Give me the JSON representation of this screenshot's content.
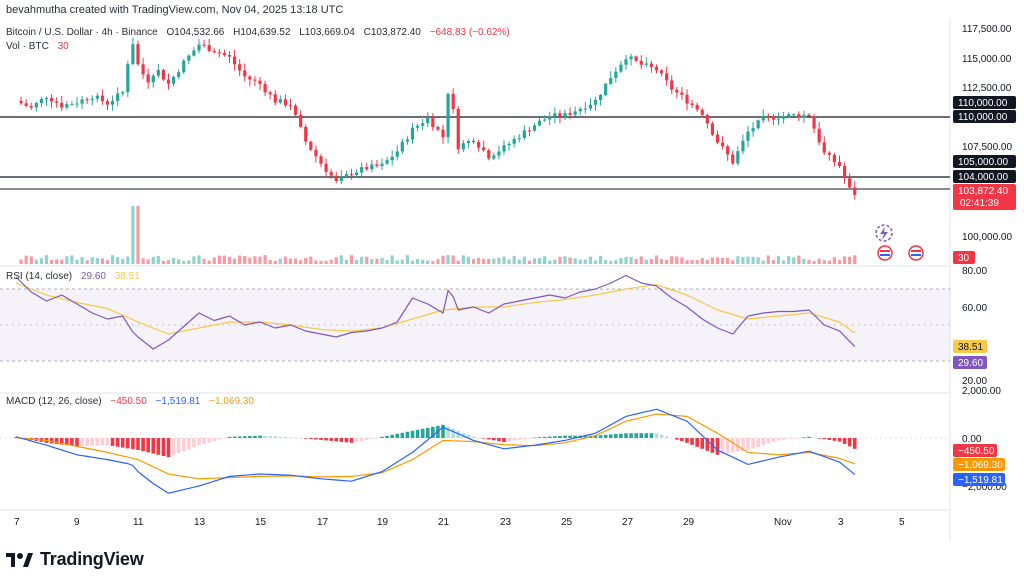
{
  "header": {
    "author_line": "bevahmutha created with TradingView.com, Nov 04, 2025 13:18 UTC"
  },
  "price_legend": {
    "symbol": "Bitcoin / U.S. Dollar · 4h · Binance",
    "open": "O104,532.66",
    "high": "H104,639.52",
    "low": "L103,669.04",
    "close": "C103,872.40",
    "change": "−648.83 (−0.62%)"
  },
  "volume_legend": {
    "label": "Vol · BTC",
    "value": "30"
  },
  "rsi_legend": {
    "label": "RSI (14, close)",
    "rsi": "29.60",
    "ma": "38.51"
  },
  "macd_legend": {
    "label": "MACD (12, 26, close)",
    "hist": "−450.50",
    "macd": "−1,519.81",
    "signal": "−1,069.30"
  },
  "price_axis": {
    "ticks": [
      "117,500.00",
      "115,000.00",
      "112,500.00",
      "107,500.00",
      "100,000.00"
    ],
    "tags": {
      "t110a": "110,000.00",
      "t110b": "110,000.00",
      "t105": "105,000.00",
      "t104": "104,000.00",
      "last": "103,872.40",
      "countdown": "02:41:39",
      "vol": "30"
    }
  },
  "rsi_axis": {
    "ticks": [
      "80.00",
      "60.00",
      "20.00"
    ],
    "ma_tag": "38.51",
    "rsi_tag": "29.60"
  },
  "macd_axis": {
    "ticks": [
      "2,000.00",
      "0.00",
      "−2,000.00"
    ],
    "hist_tag": "−450.50",
    "signal_tag": "−1,069.30",
    "macd_tag": "−1,519.81"
  },
  "time_axis": {
    "labels": [
      "7",
      "9",
      "11",
      "13",
      "15",
      "17",
      "19",
      "21",
      "23",
      "25",
      "27",
      "29",
      "Nov",
      "3",
      "5"
    ]
  },
  "brand": {
    "name": "TradingView"
  },
  "colors": {
    "up": "#26a69a",
    "down": "#f23645",
    "rsi": "#7e57c2",
    "rsi_ma": "#f7c948",
    "macd": "#2962ff",
    "signal": "#ff9800",
    "hline": "#131722"
  },
  "chart_data": [
    {
      "type": "candlestick",
      "title": "Bitcoin / U.S. Dollar · 4h · Binance",
      "ylim": [
        97500,
        118500
      ],
      "horizontal_levels": [
        110000,
        104000,
        103872.4
      ],
      "close_path": [
        [
          7,
          111600
        ],
        [
          7.5,
          111000
        ],
        [
          8,
          112000
        ],
        [
          8.5,
          111200
        ],
        [
          9,
          111500
        ],
        [
          9.5,
          112000
        ],
        [
          10,
          111400
        ],
        [
          10.5,
          112300
        ],
        [
          10.8,
          116800
        ],
        [
          11,
          114600
        ],
        [
          11.3,
          113200
        ],
        [
          11.6,
          114300
        ],
        [
          12,
          113000
        ],
        [
          12.5,
          114800
        ],
        [
          13,
          116300
        ],
        [
          13.5,
          115800
        ],
        [
          14,
          115200
        ],
        [
          14.5,
          113600
        ],
        [
          15,
          113000
        ],
        [
          15.5,
          111600
        ],
        [
          16,
          111300
        ],
        [
          16.5,
          108200
        ],
        [
          17,
          106400
        ],
        [
          17.5,
          104800
        ],
        [
          18,
          105600
        ],
        [
          18.5,
          106000
        ],
        [
          19,
          106200
        ],
        [
          19.5,
          107400
        ],
        [
          20,
          109200
        ],
        [
          20.5,
          110200
        ],
        [
          21,
          108600
        ],
        [
          21.2,
          113100
        ],
        [
          21.5,
          107800
        ],
        [
          22,
          108400
        ],
        [
          22.5,
          107000
        ],
        [
          23,
          107700
        ],
        [
          23.5,
          108700
        ],
        [
          24,
          109600
        ],
        [
          24.5,
          110300
        ],
        [
          25,
          110400
        ],
        [
          25.5,
          111000
        ],
        [
          26,
          111600
        ],
        [
          26.5,
          113600
        ],
        [
          27,
          115300
        ],
        [
          27.5,
          114600
        ],
        [
          28,
          114200
        ],
        [
          28.5,
          112600
        ],
        [
          29,
          111600
        ],
        [
          29.5,
          110600
        ],
        [
          30,
          108200
        ],
        [
          30.5,
          106500
        ],
        [
          31,
          109000
        ],
        [
          31.5,
          110100
        ],
        [
          32,
          110300
        ],
        [
          32.5,
          110400
        ],
        [
          33,
          110400
        ],
        [
          33.5,
          107200
        ],
        [
          34,
          106200
        ],
        [
          34.3,
          104300
        ],
        [
          34.5,
          103872
        ]
      ],
      "volume_note": "Vol · BTC 30"
    },
    {
      "type": "line",
      "title": "RSI (14, close)",
      "ylim": [
        20,
        80
      ],
      "series": [
        {
          "name": "RSI (14, close)",
          "values": [
            [
              7,
              76
            ],
            [
              7.5,
              66
            ],
            [
              8,
              60
            ],
            [
              8.5,
              64
            ],
            [
              9,
              58
            ],
            [
              9.5,
              52
            ],
            [
              10,
              48
            ],
            [
              10.5,
              50
            ],
            [
              10.8,
              40
            ],
            [
              11,
              36
            ],
            [
              11.5,
              28
            ],
            [
              12,
              34
            ],
            [
              12.5,
              43
            ],
            [
              13,
              52
            ],
            [
              13.5,
              47
            ],
            [
              14,
              50
            ],
            [
              14.5,
              44
            ],
            [
              15,
              46
            ],
            [
              15.5,
              42
            ],
            [
              16,
              44
            ],
            [
              16.5,
              40
            ],
            [
              17,
              38
            ],
            [
              17.5,
              36
            ],
            [
              18,
              39
            ],
            [
              18.5,
              40
            ],
            [
              19,
              42
            ],
            [
              19.5,
              46
            ],
            [
              20,
              62
            ],
            [
              20.5,
              58
            ],
            [
              21,
              52
            ],
            [
              21.2,
              70
            ],
            [
              21.5,
              54
            ],
            [
              22,
              56
            ],
            [
              22.5,
              52
            ],
            [
              23,
              58
            ],
            [
              23.5,
              60
            ],
            [
              24,
              62
            ],
            [
              24.5,
              64
            ],
            [
              25,
              62
            ],
            [
              25.5,
              66
            ],
            [
              26,
              68
            ],
            [
              26.5,
              72
            ],
            [
              27,
              77
            ],
            [
              27.5,
              72
            ],
            [
              28,
              70
            ],
            [
              28.5,
              62
            ],
            [
              29,
              56
            ],
            [
              29.5,
              48
            ],
            [
              30,
              42
            ],
            [
              30.5,
              38
            ],
            [
              31,
              50
            ],
            [
              31.5,
              52
            ],
            [
              32,
              53
            ],
            [
              32.5,
              53
            ],
            [
              33,
              54
            ],
            [
              33.5,
              44
            ],
            [
              34,
              40
            ],
            [
              34.5,
              29.6
            ]
          ]
        },
        {
          "name": "MA",
          "values": [
            [
              7,
              72
            ],
            [
              8,
              64
            ],
            [
              9,
              59
            ],
            [
              10,
              55
            ],
            [
              11,
              46
            ],
            [
              12,
              38
            ],
            [
              13,
              42
            ],
            [
              14,
              46
            ],
            [
              15,
              46
            ],
            [
              16,
              44
            ],
            [
              17,
              41
            ],
            [
              18,
              40
            ],
            [
              19,
              42
            ],
            [
              20,
              48
            ],
            [
              21,
              54
            ],
            [
              22,
              56
            ],
            [
              23,
              56
            ],
            [
              24,
              59
            ],
            [
              25,
              61
            ],
            [
              26,
              64
            ],
            [
              27,
              68
            ],
            [
              28,
              71
            ],
            [
              29,
              64
            ],
            [
              30,
              54
            ],
            [
              31,
              48
            ],
            [
              32,
              50
            ],
            [
              33,
              52
            ],
            [
              34,
              46
            ],
            [
              34.5,
              38.51
            ]
          ]
        }
      ]
    },
    {
      "type": "line",
      "title": "MACD (12, 26, close)",
      "ylim": [
        -2500,
        2400
      ],
      "series": [
        {
          "name": "MACD",
          "values": [
            [
              7,
              50
            ],
            [
              8,
              -300
            ],
            [
              9,
              -700
            ],
            [
              10,
              -900
            ],
            [
              10.8,
              -1100
            ],
            [
              11,
              -1400
            ],
            [
              11.5,
              -1900
            ],
            [
              12,
              -2300
            ],
            [
              13,
              -2000
            ],
            [
              14,
              -1600
            ],
            [
              15,
              -1500
            ],
            [
              16,
              -1550
            ],
            [
              17,
              -1700
            ],
            [
              18,
              -1800
            ],
            [
              19,
              -1400
            ],
            [
              20,
              -600
            ],
            [
              21,
              450
            ],
            [
              22,
              -100
            ],
            [
              23,
              -450
            ],
            [
              24,
              -300
            ],
            [
              25,
              -100
            ],
            [
              26,
              200
            ],
            [
              27,
              900
            ],
            [
              28,
              1200
            ],
            [
              29,
              700
            ],
            [
              30,
              -500
            ],
            [
              31,
              -1100
            ],
            [
              32,
              -800
            ],
            [
              33,
              -550
            ],
            [
              34,
              -1000
            ],
            [
              34.5,
              -1519.81
            ]
          ]
        },
        {
          "name": "Signal",
          "values": [
            [
              7,
              10
            ],
            [
              8,
              -100
            ],
            [
              9,
              -350
            ],
            [
              10,
              -600
            ],
            [
              11,
              -900
            ],
            [
              12,
              -1500
            ],
            [
              13,
              -1700
            ],
            [
              14,
              -1650
            ],
            [
              15,
              -1600
            ],
            [
              16,
              -1580
            ],
            [
              17,
              -1620
            ],
            [
              18,
              -1600
            ],
            [
              19,
              -1450
            ],
            [
              20,
              -900
            ],
            [
              21,
              -100
            ],
            [
              22,
              -150
            ],
            [
              23,
              -280
            ],
            [
              24,
              -320
            ],
            [
              25,
              -200
            ],
            [
              26,
              100
            ],
            [
              27,
              700
            ],
            [
              28,
              1000
            ],
            [
              29,
              900
            ],
            [
              30,
              200
            ],
            [
              31,
              -600
            ],
            [
              32,
              -700
            ],
            [
              33,
              -600
            ],
            [
              34,
              -850
            ],
            [
              34.5,
              -1069.3
            ]
          ]
        },
        {
          "name": "Histogram",
          "values": [
            [
              7,
              40
            ],
            [
              8,
              -200
            ],
            [
              9,
              -350
            ],
            [
              10,
              -300
            ],
            [
              11,
              -500
            ],
            [
              12,
              -800
            ],
            [
              13,
              -300
            ],
            [
              14,
              50
            ],
            [
              15,
              100
            ],
            [
              16,
              30
            ],
            [
              17,
              -80
            ],
            [
              18,
              -200
            ],
            [
              19,
              50
            ],
            [
              20,
              300
            ],
            [
              21,
              550
            ],
            [
              22,
              50
            ],
            [
              23,
              -170
            ],
            [
              24,
              20
            ],
            [
              25,
              100
            ],
            [
              26,
              100
            ],
            [
              27,
              200
            ],
            [
              28,
              200
            ],
            [
              29,
              -200
            ],
            [
              30,
              -700
            ],
            [
              31,
              -500
            ],
            [
              32,
              -100
            ],
            [
              33,
              50
            ],
            [
              34,
              -150
            ],
            [
              34.5,
              -450.5
            ]
          ]
        }
      ]
    }
  ]
}
